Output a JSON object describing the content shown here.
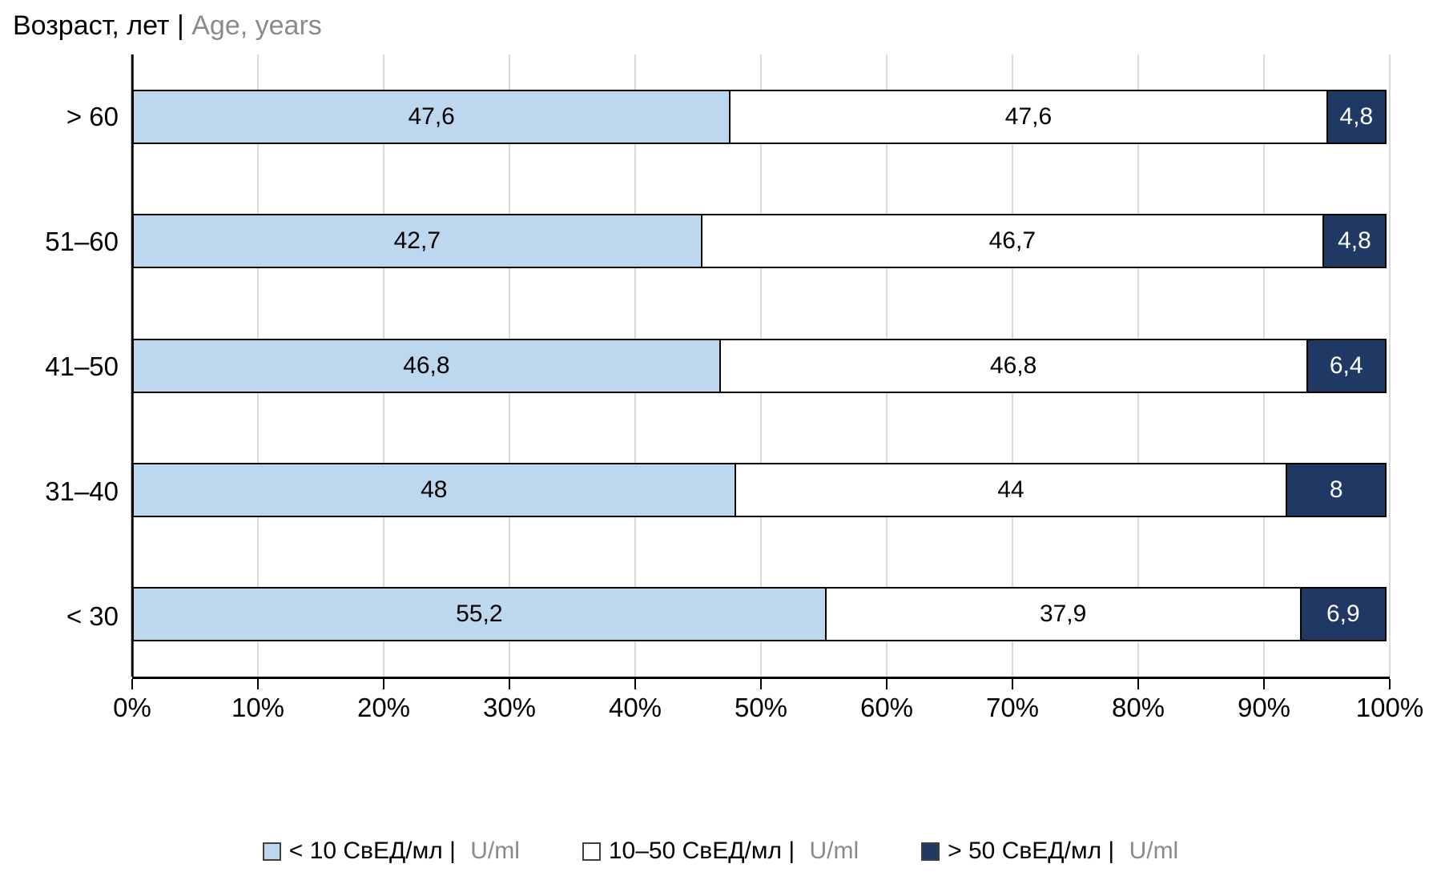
{
  "title": {
    "primary": "Возраст, лет | ",
    "secondary": "Age, years"
  },
  "chart_data": {
    "type": "bar",
    "subtype": "100%-stacked-horizontal",
    "title": "Возраст, лет | Age, years",
    "categories": [
      "> 60",
      "51–60",
      "41–50",
      "31–40",
      "< 30"
    ],
    "series": [
      {
        "name": "< 10 СвЕД/мл | ",
        "name_suffix": "U/ml",
        "color": "#BDD7EE",
        "text_color": "#000000",
        "values": [
          47.6,
          42.7,
          46.8,
          48,
          55.2
        ],
        "labels": [
          "47,6",
          "42,7",
          "46,8",
          "48",
          "55,2"
        ]
      },
      {
        "name": "10–50 СвЕД/мл | ",
        "name_suffix": "U/ml",
        "color": "#FFFFFF",
        "text_color": "#000000",
        "values": [
          47.6,
          46.7,
          46.8,
          44,
          37.9
        ],
        "labels": [
          "47,6",
          "46,7",
          "46,8",
          "44",
          "37,9"
        ]
      },
      {
        "name": "> 50 СвЕД/мл | ",
        "name_suffix": "U/ml",
        "color": "#1F3864",
        "text_color": "#FFFFFF",
        "values": [
          4.8,
          4.8,
          6.4,
          8,
          6.9
        ],
        "labels": [
          "4,8",
          "4,8",
          "6,4",
          "8",
          "6,9"
        ]
      }
    ],
    "x_ticks": [
      "0%",
      "10%",
      "20%",
      "30%",
      "40%",
      "50%",
      "60%",
      "70%",
      "80%",
      "90%",
      "100%"
    ],
    "xlim": [
      0,
      100
    ],
    "grid": true,
    "legend_position": "bottom",
    "colors": {
      "grid": "#D9D9D9",
      "axis": "#000000",
      "bar_border": "#000000",
      "title_secondary": "#8A8A8A"
    }
  }
}
